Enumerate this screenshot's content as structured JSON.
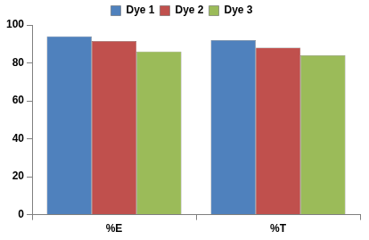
{
  "chart_data": {
    "type": "bar",
    "categories": [
      "%E",
      "%T"
    ],
    "series": [
      {
        "name": "Dye 1",
        "color": "#4f81bd",
        "values": [
          94,
          92
        ]
      },
      {
        "name": "Dye 2",
        "color": "#c0504d",
        "values": [
          91.5,
          88
        ]
      },
      {
        "name": "Dye 3",
        "color": "#9bbb59",
        "values": [
          86,
          84
        ]
      }
    ],
    "ylim": [
      0,
      100
    ],
    "yticks": [
      0,
      20,
      40,
      60,
      80,
      100
    ],
    "grid": false,
    "legend": "top"
  }
}
